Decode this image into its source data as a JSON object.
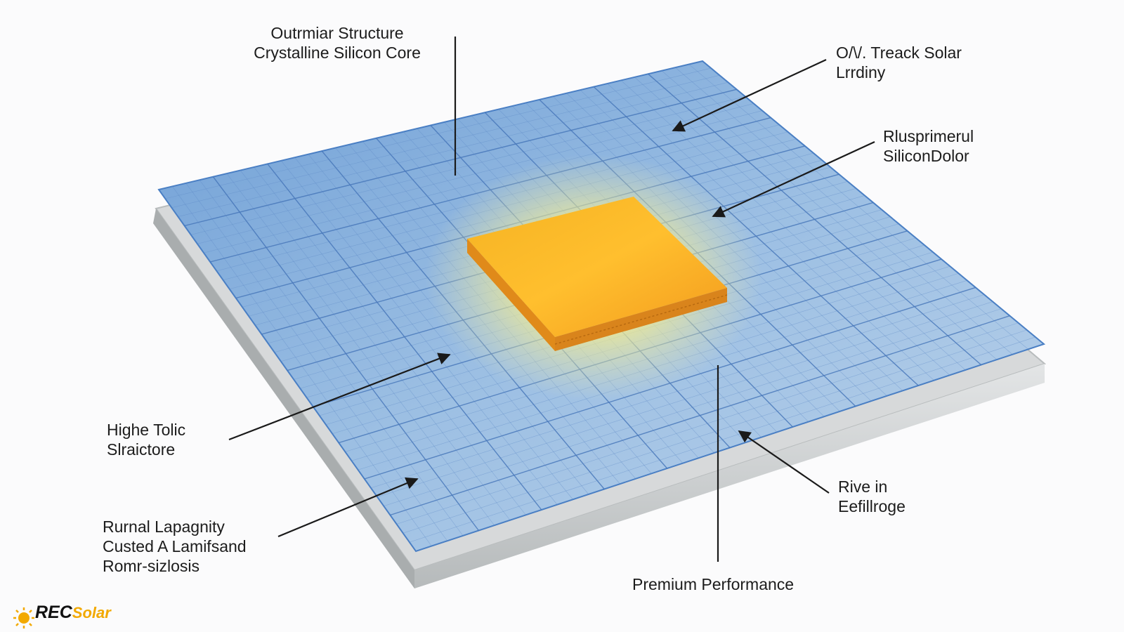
{
  "labels": {
    "top_center": [
      "Outrmiar Structure",
      "Crystalline Silicon Core"
    ],
    "top_right": [
      "O/\\/. Treack Solar",
      "Lrrdiny"
    ],
    "right_upper": [
      "Rlusprimerul",
      "SiliconDolor"
    ],
    "left_middle": [
      "Highe Tolic",
      "Slraictore"
    ],
    "left_lower": [
      "Rurnal Lapagnity",
      "Custed A Lamifsand",
      "Romr-sizlosis"
    ],
    "right_lower": [
      "Rive in",
      "Eefillroge"
    ],
    "bottom_center": "Premium Performance"
  },
  "logo": {
    "brand": "REC",
    "product": "Solar",
    "icon": "sun-icon"
  },
  "colors": {
    "panel_blue": "#5b8fd0",
    "panel_grid": "#3f72b8",
    "core_orange": "#f6a62a",
    "core_glow": "#fff36a",
    "frame_gray": "#cfd2d3",
    "logo_yellow": "#f2a900"
  }
}
